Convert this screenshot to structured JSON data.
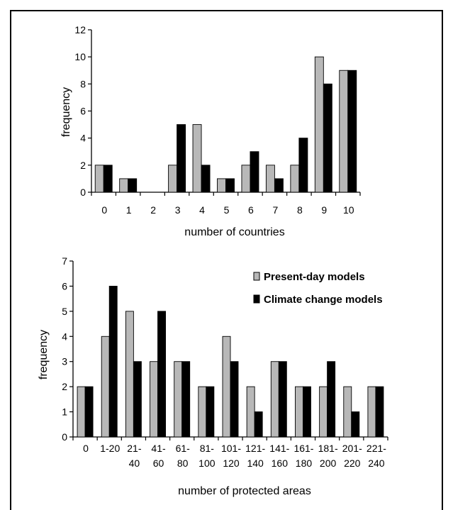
{
  "colors": {
    "present": "#b8b8b8",
    "climate": "#000000",
    "axis": "#000000"
  },
  "legend": {
    "position": "top-right of bottom chart",
    "entries": [
      "Present-day models",
      "Climate change models"
    ]
  },
  "chart_data": [
    {
      "type": "bar",
      "categories": [
        "0",
        "1",
        "2",
        "3",
        "4",
        "5",
        "6",
        "7",
        "8",
        "9",
        "10"
      ],
      "series": [
        {
          "name": "Present-day models",
          "values": [
            2,
            1,
            0,
            2,
            5,
            1,
            2,
            2,
            2,
            10,
            9
          ]
        },
        {
          "name": "Climate change models",
          "values": [
            2,
            1,
            0,
            5,
            2,
            1,
            3,
            1,
            4,
            8,
            9
          ]
        }
      ],
      "xlabel": "number of countries",
      "ylabel": "frequency",
      "ylim": [
        0,
        12
      ],
      "yticks": [
        0,
        2,
        4,
        6,
        8,
        10,
        12
      ],
      "grid": false
    },
    {
      "type": "bar",
      "categories": [
        "0",
        "1-20",
        "21-40",
        "41-60",
        "61-80",
        "81-100",
        "101-120",
        "121-140",
        "141-160",
        "161-180",
        "181-200",
        "201-220",
        "221-240"
      ],
      "tick_labels": [
        [
          "0"
        ],
        [
          "1-20"
        ],
        [
          "21-",
          "40"
        ],
        [
          "41-",
          "60"
        ],
        [
          "61-",
          "80"
        ],
        [
          "81-",
          "100"
        ],
        [
          "101-",
          "120"
        ],
        [
          "121-",
          "140"
        ],
        [
          "141-",
          "160"
        ],
        [
          "161-",
          "180"
        ],
        [
          "181-",
          "200"
        ],
        [
          "201-",
          "220"
        ],
        [
          "221-",
          "240"
        ]
      ],
      "series": [
        {
          "name": "Present-day models",
          "values": [
            2,
            4,
            5,
            3,
            3,
            2,
            4,
            2,
            3,
            2,
            2,
            2,
            2
          ]
        },
        {
          "name": "Climate change models",
          "values": [
            2,
            6,
            3,
            5,
            3,
            2,
            3,
            1,
            3,
            2,
            3,
            1,
            2
          ]
        }
      ],
      "xlabel": "number of protected areas",
      "ylabel": "frequency",
      "ylim": [
        0,
        7
      ],
      "yticks": [
        0,
        1,
        2,
        3,
        4,
        5,
        6,
        7
      ],
      "grid": false
    }
  ]
}
